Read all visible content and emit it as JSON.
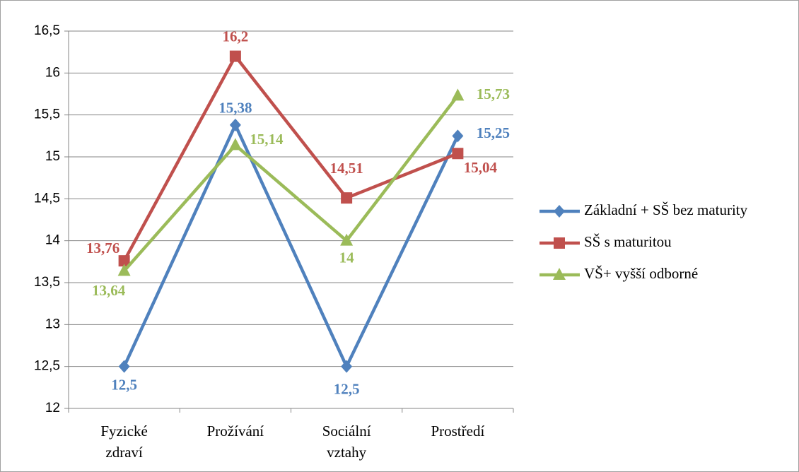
{
  "chart_data": {
    "type": "line",
    "categories": [
      "Fyzické zdraví",
      "Prožívání",
      "Sociální vztahy",
      "Prostředí"
    ],
    "ylim": [
      12,
      16.5
    ],
    "yticks": [
      12,
      {
        "value": 12.5,
        "label": "12,5"
      },
      13,
      {
        "value": 13.5,
        "label": "13,5"
      },
      14,
      {
        "value": 14.5,
        "label": "14,5"
      },
      15,
      {
        "value": 15.5,
        "label": "15,5"
      },
      16,
      {
        "value": 16.5,
        "label": "16,5"
      }
    ],
    "grid": true,
    "legend": "right",
    "series": [
      {
        "name": "Základní + SŠ bez maturity",
        "color": "#4f81bd",
        "marker": "diamond",
        "values": [
          12.5,
          15.38,
          12.5,
          15.25
        ],
        "value_labels": [
          "12,5",
          "15,38",
          "12,5",
          "15,25"
        ]
      },
      {
        "name": "SŠ s maturitou",
        "color": "#c0504d",
        "marker": "square",
        "values": [
          13.76,
          16.2,
          14.51,
          15.04
        ],
        "value_labels": [
          "13,76",
          "16,2",
          "14,51",
          "15,04"
        ]
      },
      {
        "name": "VŠ+ vyšší odborné",
        "color": "#9bbb59",
        "marker": "triangle",
        "values": [
          13.64,
          15.14,
          14,
          15.73
        ],
        "value_labels": [
          "13,64",
          "15,14",
          "14",
          "15,73"
        ]
      }
    ]
  }
}
